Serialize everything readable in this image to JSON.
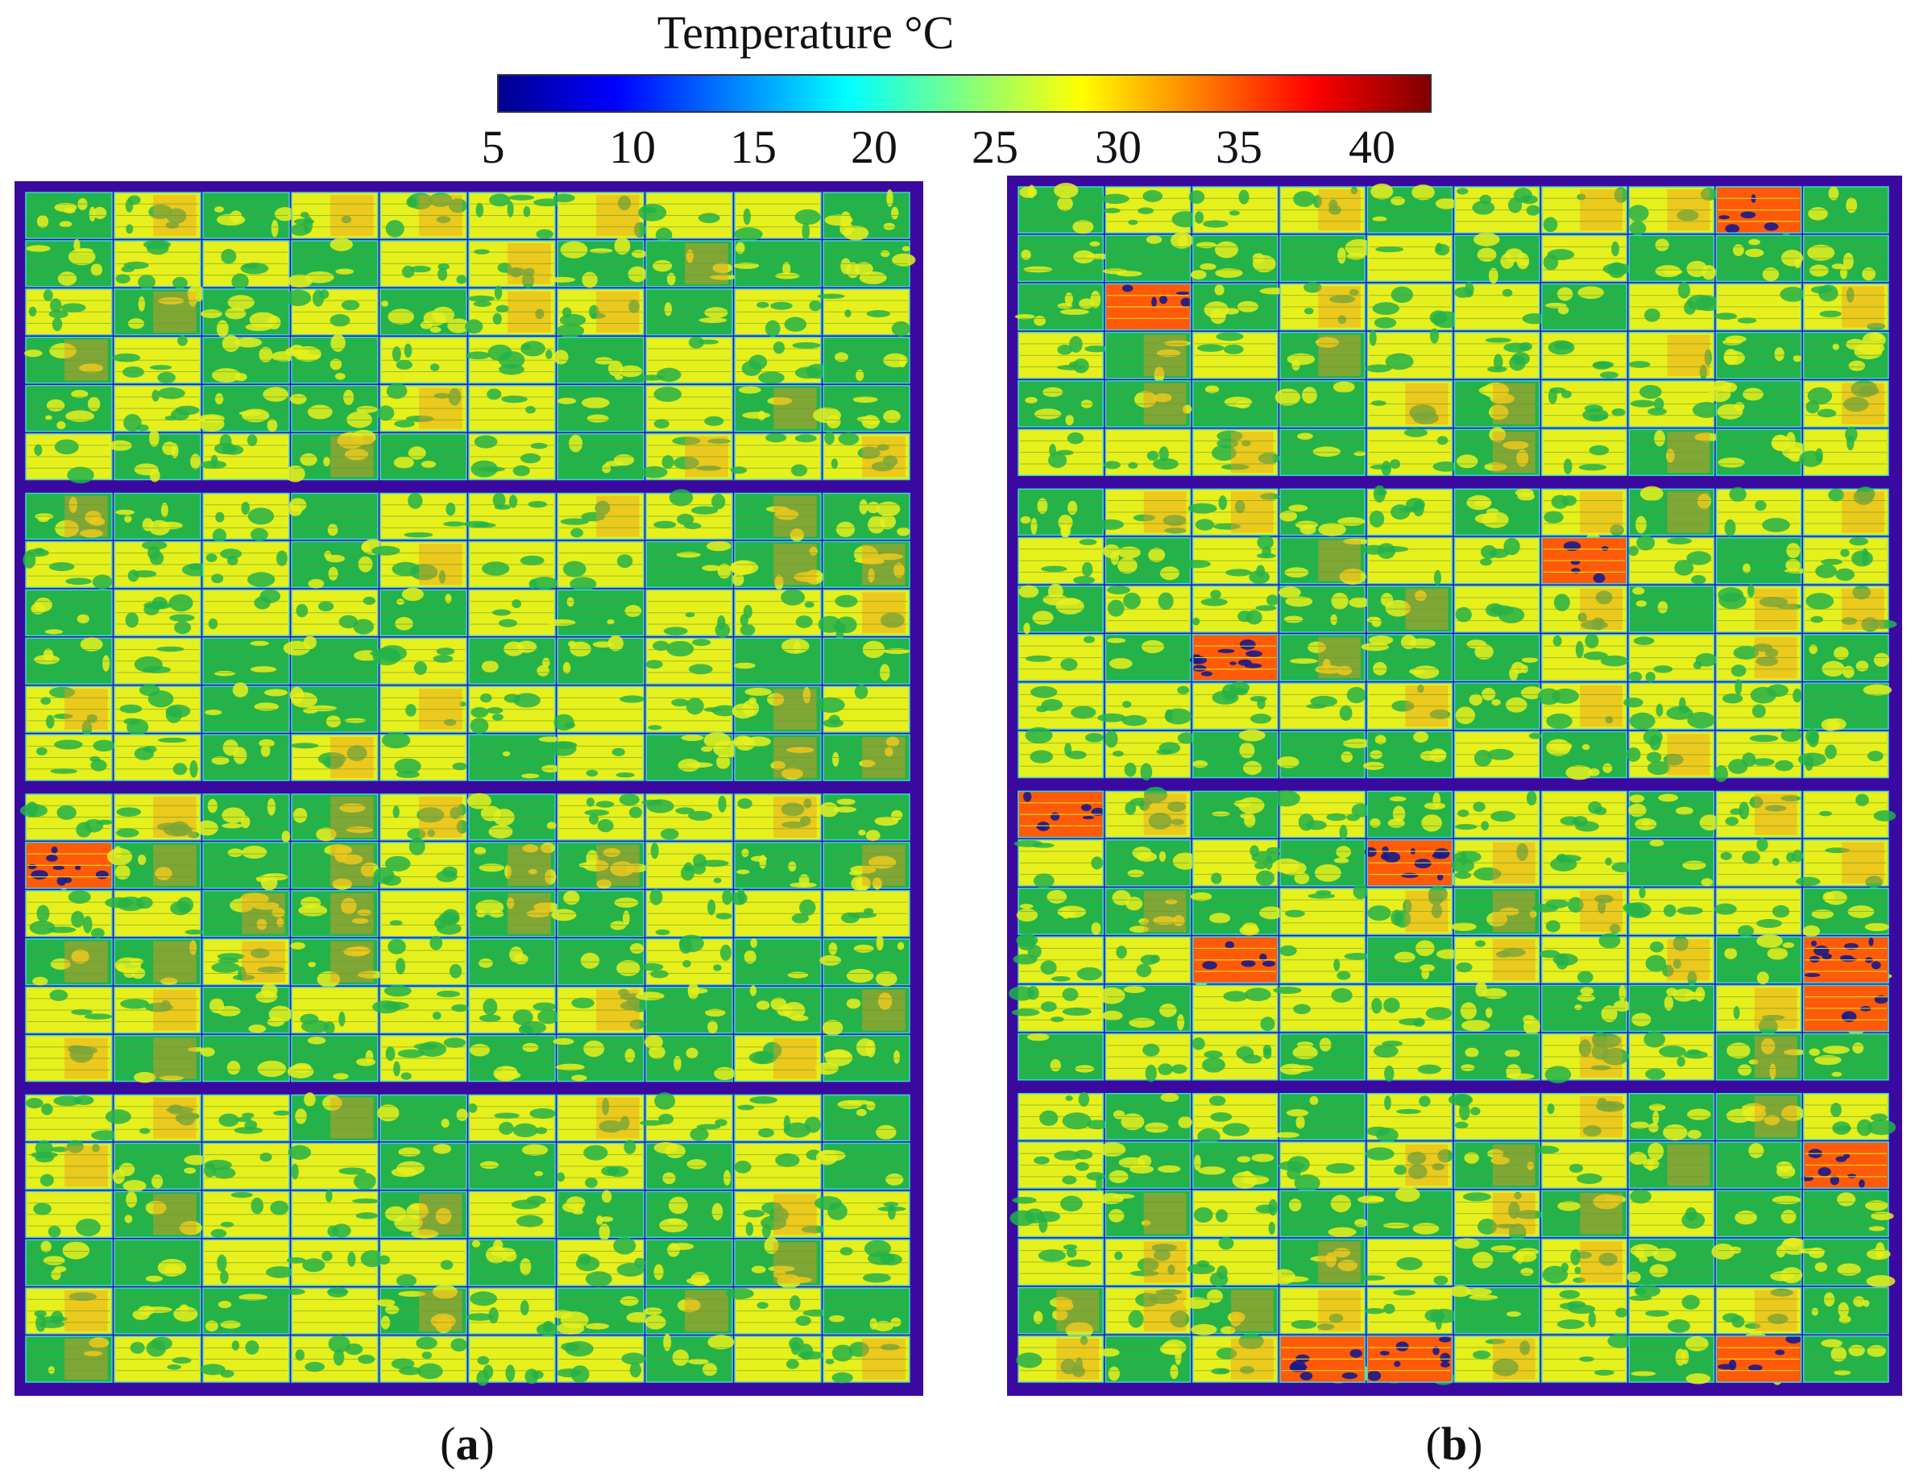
{
  "colorbar": {
    "title": "Temperature °C",
    "ticks": [
      {
        "value": 5,
        "label": "5"
      },
      {
        "value": 10,
        "label": "10"
      },
      {
        "value": 15,
        "label": "15"
      },
      {
        "value": 20,
        "label": "20"
      },
      {
        "value": 25,
        "label": "25"
      },
      {
        "value": 30,
        "label": "30"
      },
      {
        "value": 35,
        "label": "35"
      },
      {
        "value": 40,
        "label": "40"
      }
    ],
    "range": [
      5,
      42
    ],
    "colors": [
      "#00008f",
      "#0000ff",
      "#0080ff",
      "#00ffff",
      "#80ff80",
      "#ffff00",
      "#ff8000",
      "#ff0000",
      "#800000"
    ]
  },
  "panels": [
    {
      "id": "a",
      "label_open": "(",
      "label_letter": "a",
      "label_close": ")",
      "array_blocks": 4,
      "rows_per_block": 6,
      "modules_per_row": 10,
      "hotspots": [
        [
          13,
          0,
          5
        ]
      ]
    },
    {
      "id": "b",
      "label_open": "(",
      "label_letter": "b",
      "label_close": ")",
      "array_blocks": 4,
      "rows_per_block": 6,
      "modules_per_row": 10,
      "hotspots": [
        [
          0,
          8,
          3
        ],
        [
          2,
          1,
          5
        ],
        [
          7,
          6,
          5
        ],
        [
          9,
          2,
          3
        ],
        [
          12,
          0,
          3
        ],
        [
          13,
          4,
          5
        ],
        [
          15,
          2,
          3
        ],
        [
          15,
          9,
          4
        ],
        [
          16,
          9,
          4
        ],
        [
          19,
          9,
          5
        ],
        [
          23,
          3,
          5
        ],
        [
          23,
          4,
          3
        ],
        [
          23,
          8,
          3
        ]
      ]
    }
  ],
  "palette": {
    "frame": "#3a0aa0",
    "green": "#22b34a",
    "yellow": "#e6f01c",
    "orange": "#f29a1e",
    "hot": "#ff5a0a",
    "cyan": "#3fd3d6",
    "deep_blue": "#1a1a8a"
  }
}
